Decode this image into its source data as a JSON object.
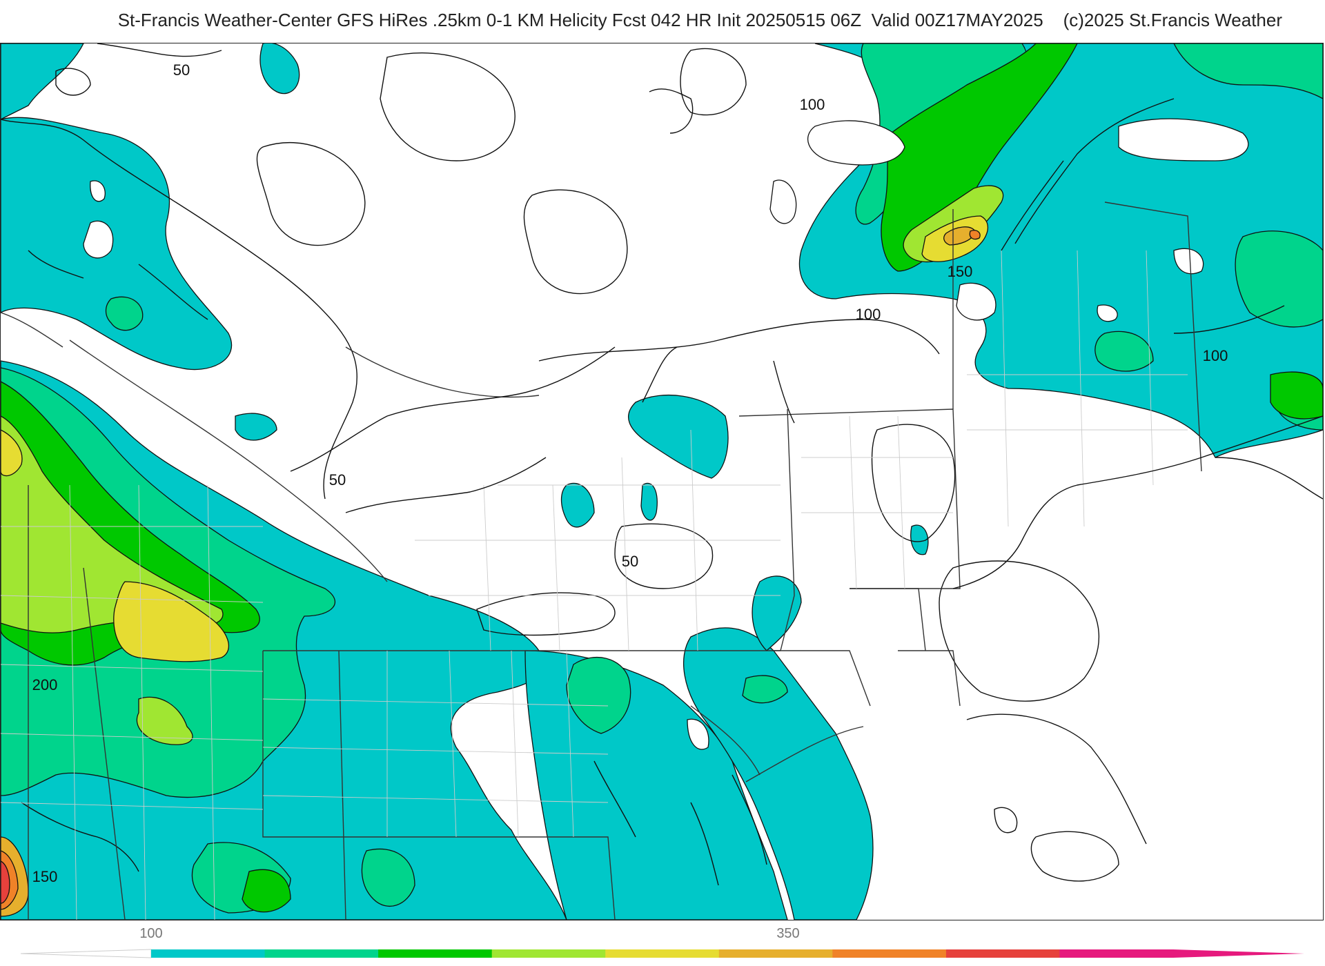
{
  "header": {
    "title": "St-Francis Weather-Center GFS HiRes .25km 0-1 KM Helicity Fcst 042 HR Init 20250515 06Z  Valid 00Z17MAY2025    (c)2025 St.Francis Weather"
  },
  "map": {
    "contour_labels": [
      {
        "id": "c50-a",
        "text": "50"
      },
      {
        "id": "c100-a",
        "text": "100"
      },
      {
        "id": "c100-b",
        "text": "100"
      },
      {
        "id": "c150-a",
        "text": "150"
      },
      {
        "id": "c100-c",
        "text": "100"
      },
      {
        "id": "c50-b",
        "text": "50"
      },
      {
        "id": "c50-c",
        "text": "50"
      },
      {
        "id": "c200-a",
        "text": "200"
      },
      {
        "id": "c150-b",
        "text": "150"
      }
    ]
  },
  "colorbar": {
    "tick_labels": [
      "100",
      "350"
    ],
    "colors": [
      "#00c8c8",
      "#00d48c",
      "#00c800",
      "#a0e632",
      "#e6dc32",
      "#e6af2d",
      "#f08228",
      "#e6413c",
      "#e6197d"
    ]
  },
  "palette": {
    "c100": "#00c8c8",
    "c125": "#00d48c",
    "c150": "#00c800",
    "c175": "#a0e632",
    "c200": "#e6dc32",
    "c225": "#e6af2d",
    "c250": "#f08228",
    "c275": "#e6413c",
    "c300": "#e6197d"
  }
}
